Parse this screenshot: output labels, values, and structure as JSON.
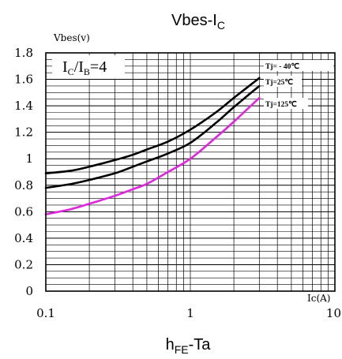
{
  "chart_data": {
    "type": "line",
    "title_main": "Vbes-I",
    "title_sub": "C",
    "footer_main": "h",
    "footer_sub": "FE",
    "footer_tail": "-Ta",
    "ylabel": "Vbes(v)",
    "xlabel": "Ic(A)",
    "x_scale": "log",
    "xlim": [
      0.1,
      10
    ],
    "ylim": [
      0,
      1.8
    ],
    "grid": true,
    "x_ticks": [
      {
        "value": 0.1,
        "label": "0.1"
      },
      {
        "value": 1,
        "label": "1"
      },
      {
        "value": 10,
        "label": "10"
      }
    ],
    "y_ticks": [
      {
        "value": 0,
        "label": "0"
      },
      {
        "value": 0.2,
        "label": "0.2"
      },
      {
        "value": 0.4,
        "label": "0.4"
      },
      {
        "value": 0.6,
        "label": "0.6"
      },
      {
        "value": 0.8,
        "label": "0.8"
      },
      {
        "value": 1.0,
        "label": "1"
      },
      {
        "value": 1.2,
        "label": "1.2"
      },
      {
        "value": 1.4,
        "label": "1.4"
      },
      {
        "value": 1.6,
        "label": "1.6"
      },
      {
        "value": 1.8,
        "label": "1.8"
      }
    ],
    "annotation": {
      "a": "I",
      "a_sub": "C",
      "mid": "/I",
      "b_sub": "B",
      "tail": "=4"
    },
    "series": [
      {
        "name": "Tj= - 40℃",
        "color": "#000000",
        "x": [
          0.1,
          0.15,
          0.2,
          0.3,
          0.4,
          0.5,
          0.7,
          1.0,
          1.5,
          2.0,
          3.0
        ],
        "y": [
          0.89,
          0.91,
          0.94,
          0.99,
          1.03,
          1.07,
          1.13,
          1.22,
          1.35,
          1.46,
          1.61
        ]
      },
      {
        "name": "Tj=25℃",
        "color": "#000000",
        "x": [
          0.1,
          0.15,
          0.2,
          0.3,
          0.4,
          0.5,
          0.7,
          1.0,
          1.5,
          2.0,
          3.0
        ],
        "y": [
          0.78,
          0.81,
          0.84,
          0.89,
          0.94,
          0.98,
          1.04,
          1.12,
          1.27,
          1.39,
          1.55
        ]
      },
      {
        "name": "Tj=125℃",
        "color": "#e024e0",
        "x": [
          0.1,
          0.15,
          0.2,
          0.3,
          0.4,
          0.5,
          0.7,
          1.0,
          1.5,
          2.0,
          3.0
        ],
        "y": [
          0.58,
          0.62,
          0.66,
          0.72,
          0.77,
          0.81,
          0.9,
          1.0,
          1.16,
          1.28,
          1.46
        ]
      }
    ]
  }
}
